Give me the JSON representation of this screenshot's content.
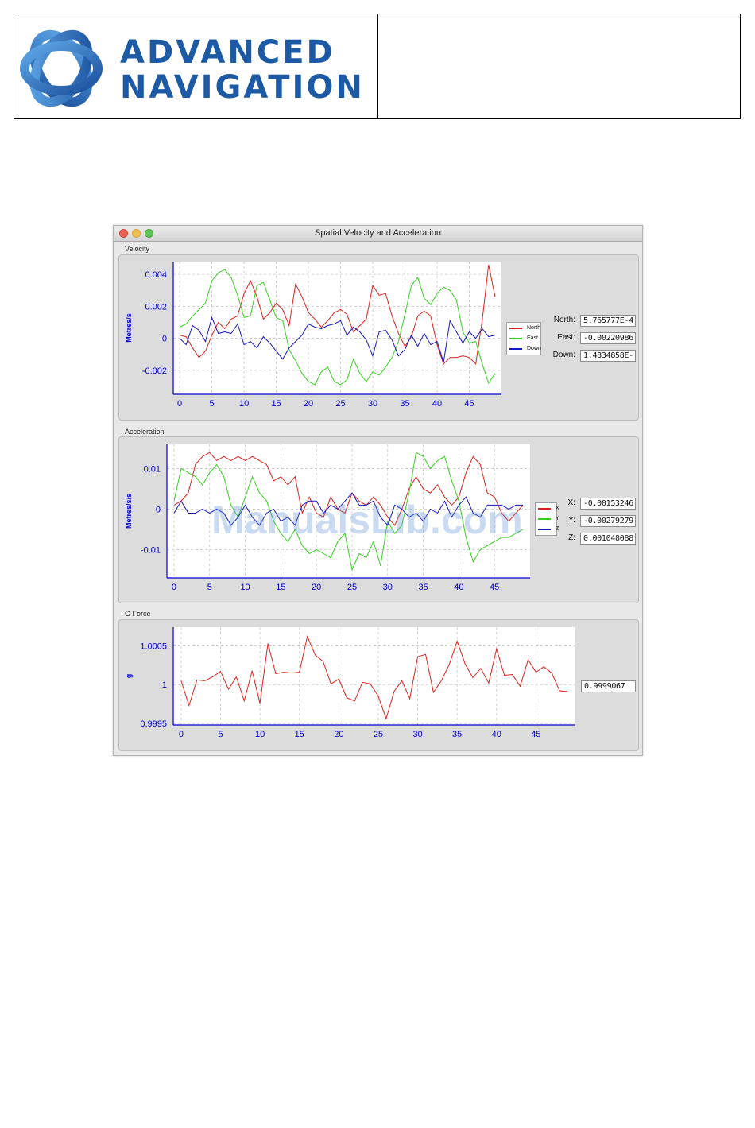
{
  "header": {
    "brand_line1": "ADVANCED",
    "brand_line2": "NAVIGATION"
  },
  "window": {
    "title": "Spatial Velocity and Acceleration"
  },
  "velocity": {
    "group_title": "Velocity",
    "readouts": [
      {
        "label": "North:",
        "value": "5.765777E-4"
      },
      {
        "label": "East:",
        "value": "-0.00220986"
      },
      {
        "label": "Down:",
        "value": "1.4834858E-"
      }
    ]
  },
  "acceleration": {
    "group_title": "Acceleration",
    "readouts": [
      {
        "label": "X:",
        "value": "-0.00153246"
      },
      {
        "label": "Y:",
        "value": "-0.00279279"
      },
      {
        "label": "Z:",
        "value": "0.001048088"
      }
    ]
  },
  "gforce": {
    "group_title": "G Force",
    "readout_value": "0.9999067"
  },
  "watermark": "ManualsLib.com",
  "colors": {
    "axis": "#0000cc",
    "red": "#e0201a",
    "green": "#34d21e",
    "blue": "#1414c8",
    "brand": "#1c5aa6"
  },
  "chart_data": [
    {
      "type": "line",
      "id": "velocity",
      "ylabel": "Metres/s",
      "xlim": [
        -1,
        50
      ],
      "ylim": [
        -0.0035,
        0.0048
      ],
      "xticks": [
        0,
        5,
        10,
        15,
        20,
        25,
        30,
        35,
        40,
        45
      ],
      "yticks": [
        -0.002,
        0,
        0.002,
        0.004
      ],
      "ytick_labels": [
        "-0.002",
        "0",
        "0.002",
        "0.004"
      ],
      "legend": "right",
      "series": [
        {
          "name": "North",
          "color": "#e0201a",
          "values": [
            0.0002,
            0.0001,
            -0.0006,
            -0.0012,
            -0.0008,
            0.0002,
            0.001,
            0.0006,
            0.0012,
            0.0014,
            0.0028,
            0.0036,
            0.0026,
            0.0012,
            0.0016,
            0.0022,
            0.0018,
            0.0008,
            0.0034,
            0.0026,
            0.0016,
            0.0012,
            0.0007,
            0.0011,
            0.0016,
            0.0018,
            0.0015,
            0.0004,
            0.0008,
            0.0012,
            0.0033,
            0.0027,
            0.0028,
            0.0014,
            0.0003,
            -0.0005,
            0.0001,
            0.0014,
            0.0017,
            0.0014,
            -0.0004,
            -0.0016,
            -0.0012,
            -0.0012,
            -0.0011,
            -0.0012,
            -0.0016,
            0.0011,
            0.0046,
            0.0026
          ]
        },
        {
          "name": "East",
          "color": "#34d21e",
          "values": [
            0.0007,
            0.0009,
            0.0014,
            0.0018,
            0.0022,
            0.0036,
            0.0041,
            0.0043,
            0.0038,
            0.0027,
            0.0013,
            0.0014,
            0.0033,
            0.0035,
            0.0024,
            0.0013,
            0.0011,
            -0.0007,
            -0.0014,
            -0.0022,
            -0.0027,
            -0.0029,
            -0.0021,
            -0.0018,
            -0.0027,
            -0.0029,
            -0.0026,
            -0.0013,
            -0.0022,
            -0.0027,
            -0.0021,
            -0.0023,
            -0.0018,
            -0.0012,
            -0.0002,
            0.0015,
            0.0033,
            0.0038,
            0.0025,
            0.0021,
            0.0028,
            0.0032,
            0.003,
            0.0024,
            0.0004,
            -0.0003,
            -0.0002,
            -0.0016,
            -0.0028,
            -0.0022
          ]
        },
        {
          "name": "Down",
          "color": "#1414c8",
          "values": [
            0.0,
            -0.0004,
            0.0008,
            0.0005,
            -0.0002,
            0.0013,
            0.0003,
            0.0004,
            0.0003,
            0.0009,
            -0.0004,
            -0.0002,
            -0.0006,
            0.0001,
            -0.0003,
            -0.0008,
            -0.0013,
            -0.0006,
            -0.0002,
            0.0002,
            0.0009,
            0.0007,
            0.0006,
            0.0008,
            0.0009,
            0.0011,
            0.0002,
            0.0007,
            0.0004,
            -0.0001,
            -0.0011,
            0.0004,
            0.0005,
            -0.0001,
            -0.0011,
            -0.0007,
            0.0002,
            -0.0005,
            0.0003,
            -0.0004,
            -0.0002,
            -0.0015,
            0.0011,
            0.0004,
            -0.0003,
            0.0004,
            0.0,
            0.0006,
            0.0001,
            0.0002
          ]
        }
      ]
    },
    {
      "type": "line",
      "id": "acceleration",
      "ylabel": "Metres/s/s",
      "xlim": [
        -1,
        50
      ],
      "ylim": [
        -0.017,
        0.016
      ],
      "xticks": [
        0,
        5,
        10,
        15,
        20,
        25,
        30,
        35,
        40,
        45
      ],
      "yticks": [
        -0.01,
        0,
        0.01
      ],
      "ytick_labels": [
        "-0.01",
        "0",
        "0.01"
      ],
      "legend": "right",
      "series": [
        {
          "name": "X",
          "color": "#e0201a",
          "values": [
            0.001,
            0.002,
            0.004,
            0.011,
            0.013,
            0.014,
            0.012,
            0.013,
            0.012,
            0.013,
            0.012,
            0.013,
            0.012,
            0.011,
            0.007,
            0.008,
            0.006,
            0.008,
            -0.001,
            0.003,
            -0.001,
            -0.002,
            0.003,
            0.0,
            -0.001,
            0.004,
            0.002,
            0.001,
            0.003,
            0.001,
            -0.002,
            -0.004,
            0.0,
            0.005,
            0.008,
            0.005,
            0.004,
            0.006,
            0.003,
            0.001,
            0.003,
            0.009,
            0.013,
            0.011,
            0.004,
            0.003,
            -0.001,
            -0.003,
            -0.001,
            0.001
          ]
        },
        {
          "name": "Y",
          "color": "#34d21e",
          "values": [
            0.002,
            0.01,
            0.009,
            0.008,
            0.006,
            0.009,
            0.011,
            0.008,
            0.001,
            -0.002,
            0.003,
            0.008,
            0.004,
            0.002,
            -0.003,
            -0.006,
            -0.008,
            -0.005,
            -0.009,
            -0.011,
            -0.01,
            -0.011,
            -0.012,
            -0.008,
            -0.006,
            -0.015,
            -0.011,
            -0.012,
            -0.008,
            -0.014,
            -0.003,
            -0.006,
            -0.004,
            0.004,
            0.014,
            0.013,
            0.01,
            0.012,
            0.013,
            0.007,
            0.002,
            -0.007,
            -0.013,
            -0.01,
            -0.009,
            -0.008,
            -0.007,
            -0.007,
            -0.006,
            -0.005
          ]
        },
        {
          "name": "Z",
          "color": "#1414c8",
          "values": [
            -0.001,
            0.002,
            -0.001,
            -0.001,
            0.0,
            -0.001,
            0.0,
            -0.001,
            -0.004,
            -0.002,
            0.001,
            -0.002,
            -0.004,
            -0.001,
            0.0,
            -0.003,
            -0.002,
            -0.004,
            0.001,
            0.002,
            0.002,
            -0.001,
            0.001,
            0.0,
            0.002,
            0.004,
            0.001,
            0.001,
            0.002,
            -0.002,
            -0.004,
            0.001,
            0.0,
            -0.002,
            -0.001,
            -0.003,
            0.0,
            -0.001,
            0.002,
            -0.002,
            0.001,
            0.003,
            -0.001,
            -0.002,
            0.001,
            0.001,
            0.001,
            0.0,
            0.001,
            0.001
          ]
        }
      ]
    },
    {
      "type": "line",
      "id": "gforce",
      "ylabel": "g",
      "xlim": [
        -1,
        50
      ],
      "ylim": [
        0.99948,
        1.00074
      ],
      "xticks": [
        0,
        5,
        10,
        15,
        20,
        25,
        30,
        35,
        40,
        45
      ],
      "yticks": [
        0.9995,
        1,
        1.0005
      ],
      "ytick_labels": [
        "0.9995",
        "1",
        "1.0005"
      ],
      "series": [
        {
          "name": "",
          "color": "#e0201a",
          "values": [
            1.00005,
            0.99973,
            1.00006,
            1.00005,
            1.0001,
            1.00017,
            0.99994,
            1.0001,
            0.99979,
            1.00018,
            0.99976,
            1.00053,
            1.00014,
            1.00016,
            1.00015,
            1.00016,
            1.00062,
            1.00038,
            1.0003,
            1.00001,
            1.00007,
            0.99983,
            0.99979,
            1.00003,
            1.00001,
            0.99985,
            0.99956,
            0.99991,
            1.00005,
            0.99982,
            1.00036,
            1.00039,
            0.9999,
            1.00005,
            1.00026,
            1.00056,
            1.00027,
            1.00009,
            1.00021,
            1.00002,
            1.00046,
            1.00012,
            1.00013,
            0.99998,
            1.00032,
            1.00016,
            1.00023,
            1.00015,
            0.99992,
            0.99991
          ]
        }
      ]
    }
  ]
}
